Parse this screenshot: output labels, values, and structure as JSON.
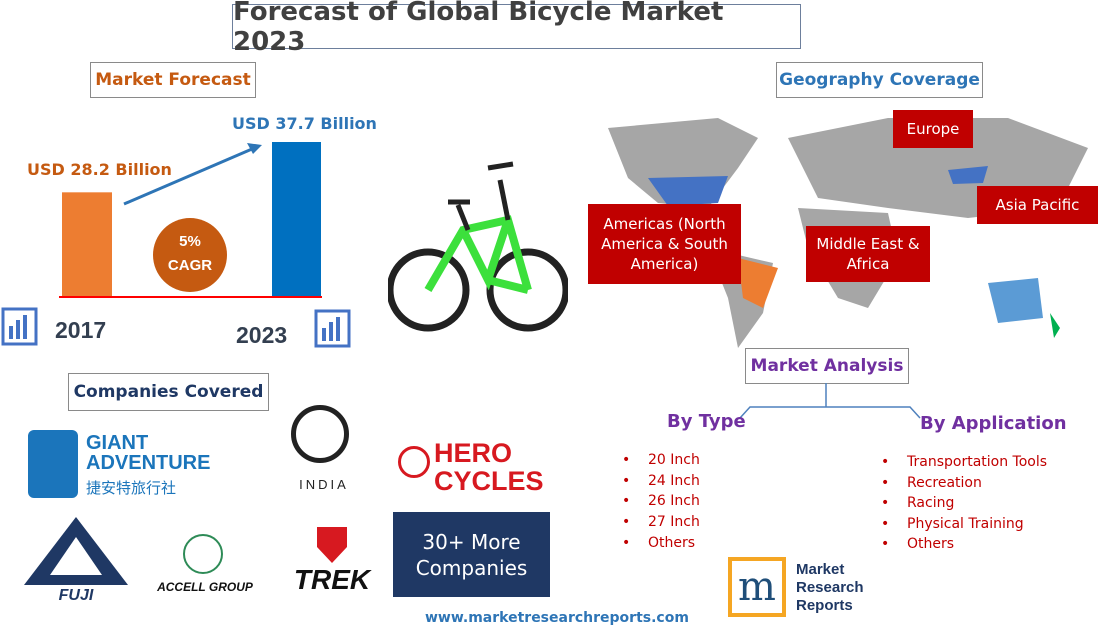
{
  "title": "Forecast of Global Bicycle Market 2023",
  "forecast": {
    "heading": "Market Forecast",
    "label_2017": "USD 28.2 Billion",
    "label_2023": "USD 37.7 Billion",
    "cagr_value": "5%",
    "cagr_label": "CAGR",
    "year_2017": "2017",
    "year_2023": "2023"
  },
  "chart_data": {
    "type": "bar",
    "categories": [
      "2017",
      "2023"
    ],
    "values": [
      28.2,
      37.7
    ],
    "unit": "USD Billion",
    "title": "Market Forecast",
    "colors": [
      "#ed7d31",
      "#0070c0"
    ]
  },
  "geography": {
    "heading": "Geography Coverage",
    "regions": [
      "Europe",
      "Asia Pacific",
      "Americas (North America & South America)",
      "Middle East & Africa"
    ]
  },
  "analysis": {
    "heading": "Market Analysis",
    "by_type": {
      "label": "By Type",
      "items": [
        "20 Inch",
        "24 Inch",
        "26 Inch",
        "27 Inch",
        "Others"
      ]
    },
    "by_application": {
      "label": "By Application",
      "items": [
        "Transportation Tools",
        "Recreation",
        "Racing",
        "Physical Training",
        "Others"
      ]
    }
  },
  "companies": {
    "heading": "Companies Covered",
    "giant_line1": "GIANT",
    "giant_line2": "ADVENTURE",
    "giant_cn": "捷安特旅行社",
    "ti_india": "INDIA",
    "hero_line1": "HERO",
    "hero_line2": "CYCLES",
    "fuji": "FUJI",
    "accell": "ACCELL GROUP",
    "trek": "TREK",
    "more": "30+ More Companies"
  },
  "brand": {
    "line1": "Market",
    "line2": "Research",
    "line3": "Reports",
    "url": "www.marketresearchreports.com"
  }
}
